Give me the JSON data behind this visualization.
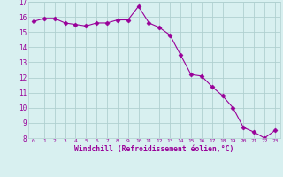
{
  "x": [
    0,
    1,
    2,
    3,
    4,
    5,
    6,
    7,
    8,
    9,
    10,
    11,
    12,
    13,
    14,
    15,
    16,
    17,
    18,
    19,
    20,
    21,
    22,
    23
  ],
  "y": [
    15.7,
    15.9,
    15.9,
    15.6,
    15.5,
    15.4,
    15.6,
    15.6,
    15.8,
    15.8,
    16.7,
    15.6,
    15.3,
    14.8,
    13.5,
    12.2,
    12.1,
    11.4,
    10.8,
    10.0,
    8.7,
    8.4,
    8.0,
    8.5
  ],
  "line_color": "#990099",
  "marker": "D",
  "marker_size": 2.5,
  "bg_color": "#d8f0f0",
  "grid_color": "#b0d0d0",
  "xlabel": "Windchill (Refroidissement éolien,°C)",
  "xlabel_color": "#990099",
  "tick_color": "#990099",
  "ylim": [
    8,
    17
  ],
  "xlim": [
    -0.5,
    23.5
  ],
  "yticks": [
    8,
    9,
    10,
    11,
    12,
    13,
    14,
    15,
    16,
    17
  ],
  "xticks": [
    0,
    1,
    2,
    3,
    4,
    5,
    6,
    7,
    8,
    9,
    10,
    11,
    12,
    13,
    14,
    15,
    16,
    17,
    18,
    19,
    20,
    21,
    22,
    23
  ]
}
